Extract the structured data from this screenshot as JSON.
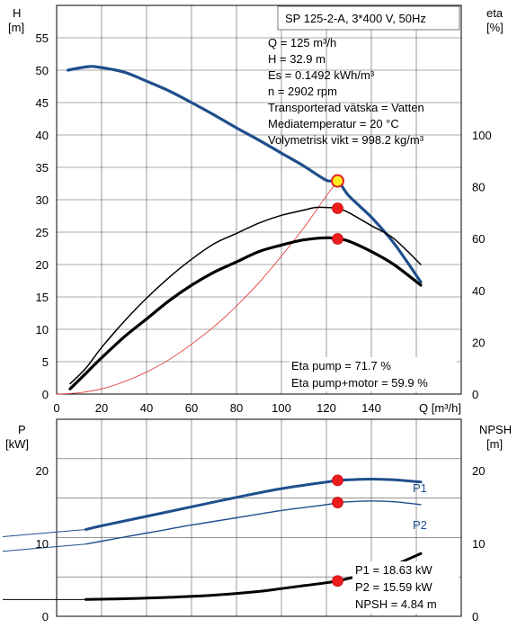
{
  "chart_data": [
    {
      "type": "line",
      "title": "SP 125-2-A, 3*400 V, 50Hz",
      "ylabel": "H",
      "ylabel_unit": "[m]",
      "y2label": "eta",
      "y2label_unit": "[%]",
      "xlabel": "Q [m³/h]",
      "xlim": [
        0,
        180
      ],
      "ylim": [
        0,
        60
      ],
      "y2lim": [
        0,
        150
      ],
      "x_ticks": [
        "0",
        "20",
        "40",
        "60",
        "80",
        "100",
        "120",
        "140"
      ],
      "x_tick_values": [
        0,
        20,
        40,
        60,
        80,
        100,
        120,
        140
      ],
      "y_ticks": [
        "0",
        "5",
        "10",
        "15",
        "20",
        "25",
        "30",
        "35",
        "40",
        "45",
        "50",
        "55"
      ],
      "y_tick_values": [
        0,
        5,
        10,
        15,
        20,
        25,
        30,
        35,
        40,
        45,
        50,
        55
      ],
      "y2_ticks": [
        "0",
        "20",
        "40",
        "60",
        "80",
        "100"
      ],
      "y2_tick_values": [
        0,
        20,
        40,
        60,
        80,
        100
      ],
      "grid": true,
      "info_lines": [
        "Q = 125 m³/h",
        "H = 32.9 m",
        "Es = 0.1492 kWh/m³",
        "n = 2902 rpm",
        "Transporterad vätska = Vatten",
        "Mediatemperatur = 20 °C",
        "Volymetrisk vikt = 998.2 kg/m³"
      ],
      "annotations": [
        "Eta pump = 71.7 %",
        "Eta pump+motor = 59.9 %"
      ],
      "series": [
        {
          "axis": "left",
          "style": "head",
          "color": "#1f4e8c",
          "x": [
            5,
            13,
            18,
            30,
            40,
            50,
            60,
            70,
            80,
            90,
            100,
            110,
            120,
            125,
            130,
            140,
            150,
            162
          ],
          "y": [
            50.0,
            50.5,
            50.5,
            49.7,
            48.3,
            46.8,
            45.0,
            43.1,
            41.1,
            39.2,
            37.2,
            35.2,
            33.0,
            32.9,
            30.6,
            27.3,
            23.3,
            17.3
          ]
        },
        {
          "axis": "left",
          "style": "system",
          "color": "#e03030",
          "x": [
            0,
            10,
            20,
            30,
            40,
            50,
            60,
            70,
            80,
            90,
            100,
            110,
            120,
            125
          ],
          "y": [
            0,
            0.2,
            0.8,
            1.9,
            3.4,
            5.3,
            7.7,
            10.4,
            13.6,
            17.2,
            21.3,
            25.7,
            30.6,
            32.9
          ]
        },
        {
          "axis": "right",
          "style": "eta_pump",
          "color": "#000000",
          "x": [
            6,
            13,
            20,
            30,
            40,
            50,
            60,
            70,
            80,
            90,
            100,
            110,
            115,
            120,
            125,
            130,
            140,
            150,
            162
          ],
          "y": [
            4,
            10,
            18,
            28,
            37,
            45,
            52,
            58,
            62,
            66,
            69,
            71,
            72,
            72,
            71.7,
            70,
            65,
            60,
            50
          ]
        },
        {
          "axis": "right",
          "style": "eta_pump_motor",
          "color": "#000000",
          "x": [
            6,
            13,
            20,
            30,
            40,
            50,
            60,
            70,
            80,
            90,
            100,
            110,
            120,
            125,
            130,
            140,
            150,
            162
          ],
          "y": [
            2,
            8,
            14,
            22,
            29,
            36,
            42,
            47,
            51,
            55,
            57.5,
            59.5,
            60.3,
            59.9,
            59,
            55,
            50,
            42
          ]
        }
      ],
      "duty_points": [
        {
          "axis": "left",
          "x": 125,
          "y": 32.9,
          "style": "yellow"
        },
        {
          "axis": "right",
          "x": 125,
          "y": 71.7,
          "style": "red"
        },
        {
          "axis": "right",
          "x": 125,
          "y": 59.9,
          "style": "red"
        }
      ]
    },
    {
      "type": "line",
      "ylabel": "P",
      "ylabel_unit": "[kW]",
      "y2label": "NPSH",
      "y2label_unit": "[m]",
      "xlim": [
        0,
        180
      ],
      "ylim": [
        0,
        27
      ],
      "y_ticks": [
        "0",
        "10",
        "20"
      ],
      "y_tick_values": [
        0,
        10,
        20
      ],
      "y2_ticks": [
        "0",
        "10",
        "20"
      ],
      "y2_tick_values": [
        0,
        10,
        20
      ],
      "grid": true,
      "annotations": [
        "P1 = 18.63 kW",
        "P2 = 15.59 kW",
        "NPSH = 4.84 m"
      ],
      "series": [
        {
          "name": "P1",
          "axis": "left",
          "style": "p1",
          "color": "#1f4e8c",
          "x": [
            13,
            20,
            40,
            60,
            80,
            100,
            120,
            125,
            130,
            140,
            150,
            162
          ],
          "y": [
            11.9,
            12.4,
            13.7,
            15.0,
            16.3,
            17.5,
            18.4,
            18.6,
            18.7,
            18.8,
            18.7,
            18.4
          ]
        },
        {
          "name": "P2",
          "axis": "left",
          "style": "p2",
          "color": "#1f4e8c",
          "x": [
            13,
            20,
            40,
            60,
            80,
            100,
            120,
            125,
            130,
            140,
            150,
            162
          ],
          "y": [
            9.9,
            10.3,
            11.4,
            12.5,
            13.5,
            14.5,
            15.3,
            15.6,
            15.7,
            15.8,
            15.7,
            15.3
          ]
        },
        {
          "axis": "right",
          "style": "npsh",
          "color": "#000000",
          "x": [
            13,
            30,
            50,
            70,
            90,
            100,
            110,
            120,
            125,
            130,
            140,
            150,
            162
          ],
          "y": [
            2.3,
            2.4,
            2.6,
            2.9,
            3.4,
            3.8,
            4.2,
            4.6,
            4.84,
            5.2,
            6.0,
            7.0,
            8.6
          ]
        }
      ],
      "duty_points": [
        {
          "axis": "left",
          "x": 125,
          "y": 18.63,
          "style": "red"
        },
        {
          "axis": "left",
          "x": 125,
          "y": 15.59,
          "style": "red"
        },
        {
          "axis": "right",
          "x": 125,
          "y": 4.84,
          "style": "red"
        }
      ]
    }
  ]
}
